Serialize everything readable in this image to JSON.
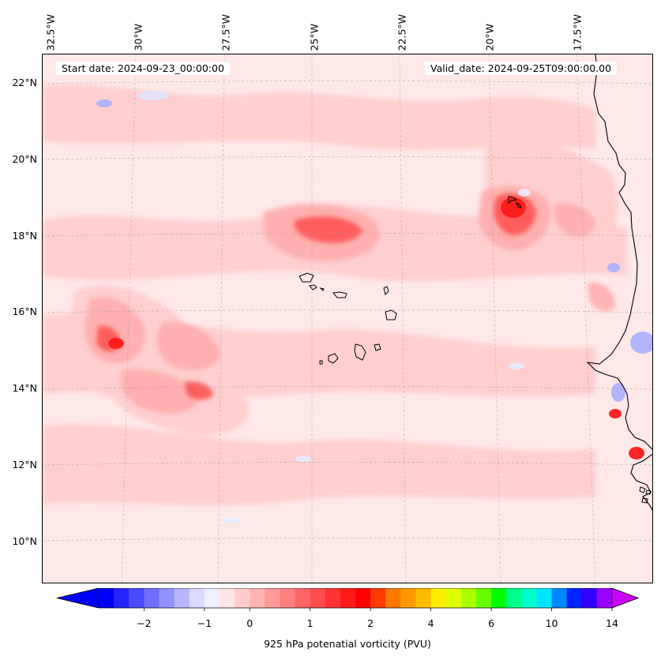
{
  "map": {
    "start_date_label": "Start date: 2024-09-23_00:00:00",
    "valid_date_label": "Valid_date: 2024-09-25T09:00:00.00",
    "lon_ticks": [
      {
        "label": "32.5°W",
        "lon": -32.5
      },
      {
        "label": "30°W",
        "lon": -30
      },
      {
        "label": "27.5°W",
        "lon": -27.5
      },
      {
        "label": "25°W",
        "lon": -25
      },
      {
        "label": "22.5°W",
        "lon": -22.5
      },
      {
        "label": "20°W",
        "lon": -20
      },
      {
        "label": "17.5°W",
        "lon": -17.5
      }
    ],
    "lat_ticks": [
      {
        "label": "22°N",
        "lat": 22
      },
      {
        "label": "20°N",
        "lat": 20
      },
      {
        "label": "18°N",
        "lat": 18
      },
      {
        "label": "16°N",
        "lat": 16
      },
      {
        "label": "14°N",
        "lat": 14
      },
      {
        "label": "12°N",
        "lat": 12
      },
      {
        "label": "10°N",
        "lat": 10
      }
    ]
  },
  "colorbar": {
    "label": "925 hPa potenatial vorticity (PVU)",
    "extend": "both",
    "colors": [
      "#0000ff",
      "#2525ff",
      "#4a4aff",
      "#6e6eff",
      "#9292ff",
      "#b6b6ff",
      "#dadaff",
      "#f0f0ff",
      "#ffe6e6",
      "#ffcccc",
      "#ffb3b3",
      "#ff9999",
      "#ff8080",
      "#ff6666",
      "#ff4d4d",
      "#ff3333",
      "#ff1a1a",
      "#ff0000",
      "#ff3c00",
      "#ff7800",
      "#ff9900",
      "#ffbb00",
      "#ffee00",
      "#ddff00",
      "#aaff00",
      "#66ff00",
      "#00ff00",
      "#00ff88",
      "#00ffcc",
      "#00e5ff",
      "#0088ff",
      "#0022ff",
      "#3300ff",
      "#9900ff"
    ],
    "under_color": "#0000ff",
    "over_color": "#cc00ff",
    "ticks": [
      {
        "label": "−2",
        "index": 3
      },
      {
        "label": "−1",
        "index": 7
      },
      {
        "label": "0",
        "index": 10
      },
      {
        "label": "1",
        "index": 14
      },
      {
        "label": "2",
        "index": 18
      },
      {
        "label": "4",
        "index": 22
      },
      {
        "label": "6",
        "index": 26
      },
      {
        "label": "10",
        "index": 30
      },
      {
        "label": "14",
        "index": 34
      }
    ]
  }
}
